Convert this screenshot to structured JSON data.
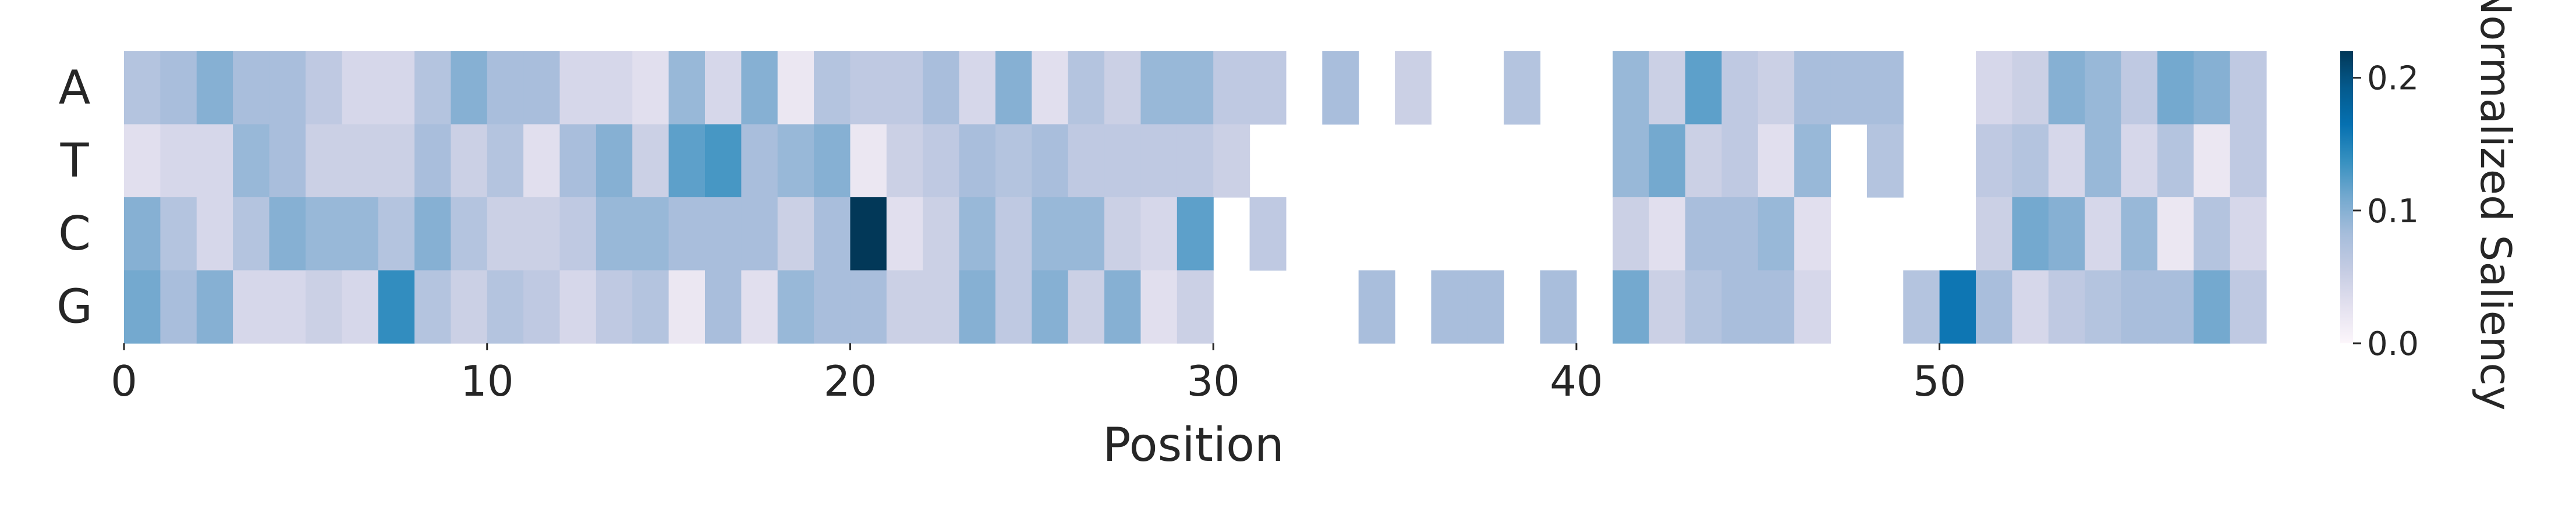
{
  "chart_data": {
    "type": "heatmap",
    "title": "",
    "xlabel": "Position",
    "ylabel": "",
    "rows": [
      "A",
      "T",
      "C",
      "G"
    ],
    "x_ticks": [
      0,
      10,
      20,
      30,
      40,
      50
    ],
    "x_tick_labels": [
      "0",
      "10",
      "20",
      "30",
      "40",
      "50"
    ],
    "n_positions": 59,
    "colorbar": {
      "label": "Normalized Saliency",
      "min": 0.0,
      "max": 0.22,
      "ticks": [
        0.0,
        0.1,
        0.2
      ],
      "tick_labels": [
        "0.0",
        "0.1",
        "0.2"
      ],
      "colors": [
        "#fcf6fb",
        "#e4e1ef",
        "#c5cce3",
        "#a6bddb",
        "#74a9cf",
        "#3690c0",
        "#0570b0",
        "#045a8d",
        "#023858"
      ]
    },
    "grid": false,
    "values": [
      [
        0.07,
        0.08,
        0.1,
        0.08,
        0.08,
        0.06,
        0.04,
        0.04,
        0.07,
        0.1,
        0.08,
        0.08,
        0.04,
        0.04,
        0.03,
        0.09,
        0.04,
        0.1,
        0.02,
        0.07,
        0.06,
        0.06,
        0.08,
        0.04,
        0.1,
        0.03,
        0.07,
        0.05,
        0.09,
        0.09,
        0.06,
        0.06,
        null,
        0.08,
        null,
        0.05,
        null,
        null,
        0.07,
        null,
        null,
        0.09,
        0.05,
        0.12,
        0.06,
        0.05,
        0.08,
        0.08,
        0.08,
        null,
        null,
        0.04,
        0.05,
        0.1,
        0.09,
        0.06,
        0.11,
        0.1,
        0.06
      ],
      [
        0.03,
        0.04,
        0.04,
        0.09,
        0.08,
        0.05,
        0.05,
        0.05,
        0.08,
        0.05,
        0.07,
        0.03,
        0.08,
        0.1,
        0.05,
        0.12,
        0.13,
        0.08,
        0.09,
        0.1,
        0.02,
        0.05,
        0.06,
        0.08,
        0.07,
        0.08,
        0.06,
        0.06,
        0.06,
        0.06,
        0.05,
        null,
        null,
        null,
        null,
        null,
        null,
        null,
        null,
        null,
        null,
        0.09,
        0.11,
        0.05,
        0.06,
        0.03,
        0.09,
        null,
        0.07,
        null,
        null,
        0.06,
        0.07,
        0.04,
        0.09,
        0.04,
        0.07,
        0.02,
        0.06
      ],
      [
        0.1,
        0.07,
        0.04,
        0.07,
        0.1,
        0.09,
        0.09,
        0.07,
        0.1,
        0.07,
        0.05,
        0.05,
        0.06,
        0.09,
        0.09,
        0.08,
        0.08,
        0.08,
        0.05,
        0.08,
        0.22,
        0.03,
        0.05,
        0.09,
        0.06,
        0.09,
        0.09,
        0.05,
        0.04,
        0.12,
        null,
        0.06,
        null,
        null,
        null,
        null,
        null,
        null,
        null,
        null,
        null,
        0.05,
        0.03,
        0.08,
        0.08,
        0.09,
        0.03,
        null,
        null,
        null,
        null,
        0.05,
        0.11,
        0.1,
        0.04,
        0.09,
        0.02,
        0.07,
        0.04
      ],
      [
        0.11,
        0.08,
        0.1,
        0.04,
        0.04,
        0.05,
        0.04,
        0.14,
        0.07,
        0.05,
        0.07,
        0.06,
        0.04,
        0.06,
        0.07,
        0.02,
        0.08,
        0.03,
        0.09,
        0.08,
        0.08,
        0.05,
        0.05,
        0.1,
        0.06,
        0.1,
        0.05,
        0.1,
        0.03,
        0.05,
        null,
        null,
        null,
        null,
        0.08,
        null,
        0.08,
        0.08,
        null,
        0.08,
        null,
        0.11,
        0.05,
        0.07,
        0.08,
        0.08,
        0.04,
        null,
        null,
        0.07,
        0.16,
        0.08,
        0.04,
        0.06,
        0.07,
        0.08,
        0.08,
        0.11,
        0.06
      ]
    ]
  }
}
